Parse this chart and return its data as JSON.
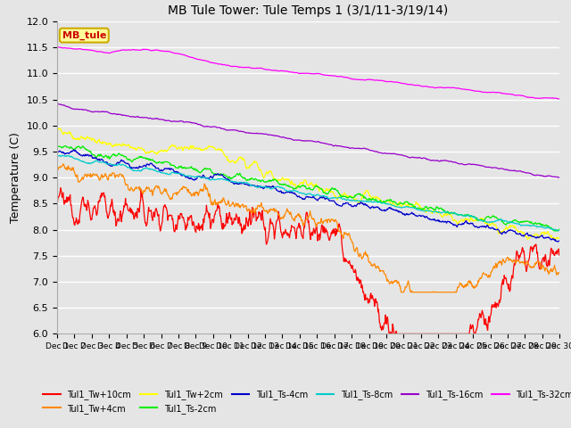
{
  "title": "MB Tule Tower: Tule Temps 1 (3/1/11-3/19/14)",
  "ylabel": "Temperature (C)",
  "ylim": [
    6.0,
    12.0
  ],
  "yticks": [
    6.0,
    6.5,
    7.0,
    7.5,
    8.0,
    8.5,
    9.0,
    9.5,
    10.0,
    10.5,
    11.0,
    11.5,
    12.0
  ],
  "bg_color": "#e5e5e5",
  "grid_color": "#ffffff",
  "legend_box_text": "MB_tule",
  "n_points": 1000,
  "series": [
    {
      "label": "Tul1_Tw+10cm",
      "color": "#ff0000"
    },
    {
      "label": "Tul1_Tw+4cm",
      "color": "#ff8800"
    },
    {
      "label": "Tul1_Tw+2cm",
      "color": "#ffff00"
    },
    {
      "label": "Tul1_Ts-2cm",
      "color": "#00ee00"
    },
    {
      "label": "Tul1_Ts-4cm",
      "color": "#0000cc"
    },
    {
      "label": "Tul1_Ts-8cm",
      "color": "#00cccc"
    },
    {
      "label": "Tul1_Ts-16cm",
      "color": "#9900cc"
    },
    {
      "label": "Tul1_Ts-32cm",
      "color": "#ff00ff"
    }
  ]
}
